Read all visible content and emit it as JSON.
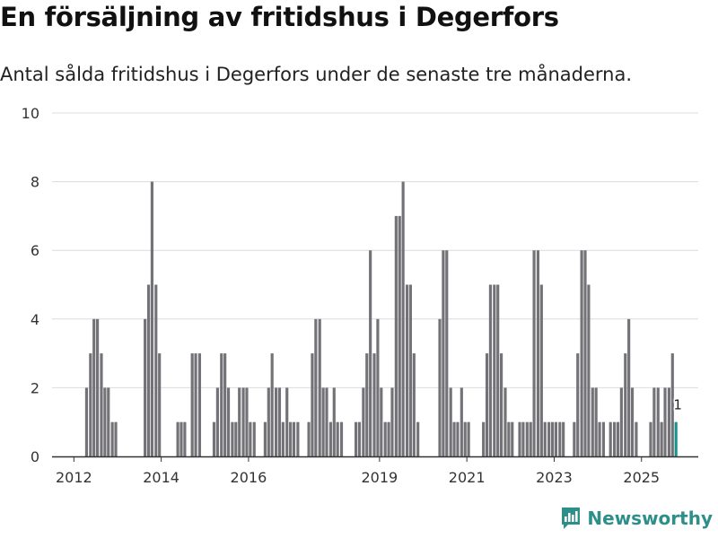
{
  "header": {
    "title": "En försäljning av fritidshus i Degerfors",
    "subtitle": "Antal sålda fritidshus i Degerfors under de senaste tre månaderna."
  },
  "brand": {
    "name": "Newsworthy",
    "icon": "newsworthy-logo-icon"
  },
  "colors": {
    "bar": "#737276",
    "highlight": "#16958f",
    "grid": "#dcdcdc",
    "axis": "#333333"
  },
  "chart_data": {
    "type": "bar",
    "title": "En försäljning av fritidshus i Degerfors",
    "subtitle": "Antal sålda fritidshus i Degerfors under de senaste tre månaderna.",
    "xlabel": "",
    "ylabel": "",
    "ylim": [
      0,
      10
    ],
    "yticks": [
      "0",
      "2",
      "4",
      "6",
      "8",
      "10"
    ],
    "xlim": [
      2011.5,
      2026.3
    ],
    "xticks": [
      "2012",
      "2014",
      "2016",
      "2019",
      "2021",
      "2023",
      "2025"
    ],
    "bar_width": 0.065,
    "grid": true,
    "series": [
      {
        "name": "Antal sålda fritidshus",
        "points": [
          [
            2011.79,
            0
          ],
          [
            2011.88,
            0
          ],
          [
            2011.96,
            0
          ],
          [
            2012.04,
            0
          ],
          [
            2012.13,
            0
          ],
          [
            2012.21,
            0
          ],
          [
            2012.29,
            2
          ],
          [
            2012.38,
            3
          ],
          [
            2012.46,
            4
          ],
          [
            2012.54,
            4
          ],
          [
            2012.63,
            3
          ],
          [
            2012.71,
            2
          ],
          [
            2012.79,
            2
          ],
          [
            2012.88,
            1
          ],
          [
            2012.96,
            1
          ],
          [
            2013.04,
            0
          ],
          [
            2013.13,
            0
          ],
          [
            2013.21,
            0
          ],
          [
            2013.29,
            0
          ],
          [
            2013.38,
            0
          ],
          [
            2013.46,
            0
          ],
          [
            2013.54,
            0
          ],
          [
            2013.63,
            4
          ],
          [
            2013.71,
            5
          ],
          [
            2013.79,
            8
          ],
          [
            2013.88,
            5
          ],
          [
            2013.96,
            3
          ],
          [
            2014.04,
            0
          ],
          [
            2014.13,
            0
          ],
          [
            2014.21,
            0
          ],
          [
            2014.29,
            0
          ],
          [
            2014.38,
            1
          ],
          [
            2014.46,
            1
          ],
          [
            2014.54,
            1
          ],
          [
            2014.63,
            0
          ],
          [
            2014.71,
            3
          ],
          [
            2014.79,
            3
          ],
          [
            2014.88,
            3
          ],
          [
            2014.96,
            0
          ],
          [
            2015.04,
            0
          ],
          [
            2015.13,
            0
          ],
          [
            2015.21,
            1
          ],
          [
            2015.29,
            2
          ],
          [
            2015.38,
            3
          ],
          [
            2015.46,
            3
          ],
          [
            2015.54,
            2
          ],
          [
            2015.63,
            1
          ],
          [
            2015.71,
            1
          ],
          [
            2015.79,
            2
          ],
          [
            2015.88,
            2
          ],
          [
            2015.96,
            2
          ],
          [
            2016.04,
            1
          ],
          [
            2016.13,
            1
          ],
          [
            2016.21,
            0
          ],
          [
            2016.29,
            0
          ],
          [
            2016.38,
            1
          ],
          [
            2016.46,
            2
          ],
          [
            2016.54,
            3
          ],
          [
            2016.63,
            2
          ],
          [
            2016.71,
            2
          ],
          [
            2016.79,
            1
          ],
          [
            2016.88,
            2
          ],
          [
            2016.96,
            1
          ],
          [
            2017.04,
            1
          ],
          [
            2017.13,
            1
          ],
          [
            2017.21,
            0
          ],
          [
            2017.29,
            0
          ],
          [
            2017.38,
            1
          ],
          [
            2017.46,
            3
          ],
          [
            2017.54,
            4
          ],
          [
            2017.63,
            4
          ],
          [
            2017.71,
            2
          ],
          [
            2017.79,
            2
          ],
          [
            2017.88,
            1
          ],
          [
            2017.96,
            2
          ],
          [
            2018.04,
            1
          ],
          [
            2018.13,
            1
          ],
          [
            2018.21,
            0
          ],
          [
            2018.29,
            0
          ],
          [
            2018.38,
            0
          ],
          [
            2018.46,
            1
          ],
          [
            2018.54,
            1
          ],
          [
            2018.63,
            2
          ],
          [
            2018.71,
            3
          ],
          [
            2018.79,
            6
          ],
          [
            2018.88,
            3
          ],
          [
            2018.96,
            4
          ],
          [
            2019.04,
            2
          ],
          [
            2019.13,
            1
          ],
          [
            2019.21,
            1
          ],
          [
            2019.29,
            2
          ],
          [
            2019.38,
            7
          ],
          [
            2019.46,
            7
          ],
          [
            2019.54,
            8
          ],
          [
            2019.63,
            5
          ],
          [
            2019.71,
            5
          ],
          [
            2019.79,
            3
          ],
          [
            2019.88,
            1
          ],
          [
            2019.96,
            0
          ],
          [
            2020.04,
            0
          ],
          [
            2020.13,
            0
          ],
          [
            2020.21,
            0
          ],
          [
            2020.29,
            0
          ],
          [
            2020.38,
            4
          ],
          [
            2020.46,
            6
          ],
          [
            2020.54,
            6
          ],
          [
            2020.63,
            2
          ],
          [
            2020.71,
            1
          ],
          [
            2020.79,
            1
          ],
          [
            2020.88,
            2
          ],
          [
            2020.96,
            1
          ],
          [
            2021.04,
            1
          ],
          [
            2021.13,
            0
          ],
          [
            2021.21,
            0
          ],
          [
            2021.29,
            0
          ],
          [
            2021.38,
            1
          ],
          [
            2021.46,
            3
          ],
          [
            2021.54,
            5
          ],
          [
            2021.63,
            5
          ],
          [
            2021.71,
            5
          ],
          [
            2021.79,
            3
          ],
          [
            2021.88,
            2
          ],
          [
            2021.96,
            1
          ],
          [
            2022.04,
            1
          ],
          [
            2022.13,
            0
          ],
          [
            2022.21,
            1
          ],
          [
            2022.29,
            1
          ],
          [
            2022.38,
            1
          ],
          [
            2022.46,
            1
          ],
          [
            2022.54,
            6
          ],
          [
            2022.63,
            6
          ],
          [
            2022.71,
            5
          ],
          [
            2022.79,
            1
          ],
          [
            2022.88,
            1
          ],
          [
            2022.96,
            1
          ],
          [
            2023.04,
            1
          ],
          [
            2023.13,
            1
          ],
          [
            2023.21,
            1
          ],
          [
            2023.29,
            0
          ],
          [
            2023.38,
            0
          ],
          [
            2023.46,
            1
          ],
          [
            2023.54,
            3
          ],
          [
            2023.63,
            6
          ],
          [
            2023.71,
            6
          ],
          [
            2023.79,
            5
          ],
          [
            2023.88,
            2
          ],
          [
            2023.96,
            2
          ],
          [
            2024.04,
            1
          ],
          [
            2024.13,
            1
          ],
          [
            2024.21,
            0
          ],
          [
            2024.29,
            1
          ],
          [
            2024.38,
            1
          ],
          [
            2024.46,
            1
          ],
          [
            2024.54,
            2
          ],
          [
            2024.63,
            3
          ],
          [
            2024.71,
            4
          ],
          [
            2024.79,
            2
          ],
          [
            2024.88,
            1
          ],
          [
            2024.96,
            0
          ],
          [
            2025.04,
            0
          ],
          [
            2025.13,
            0
          ],
          [
            2025.21,
            1
          ],
          [
            2025.29,
            2
          ],
          [
            2025.38,
            2
          ],
          [
            2025.46,
            1
          ],
          [
            2025.54,
            2
          ],
          [
            2025.63,
            2
          ],
          [
            2025.71,
            3
          ]
        ]
      },
      {
        "name": "Senaste tre månaderna",
        "highlight": true,
        "points": [
          [
            2025.79,
            1
          ]
        ]
      }
    ],
    "annotations": [
      {
        "x": 2025.79,
        "y": 1,
        "text": "1"
      }
    ]
  }
}
